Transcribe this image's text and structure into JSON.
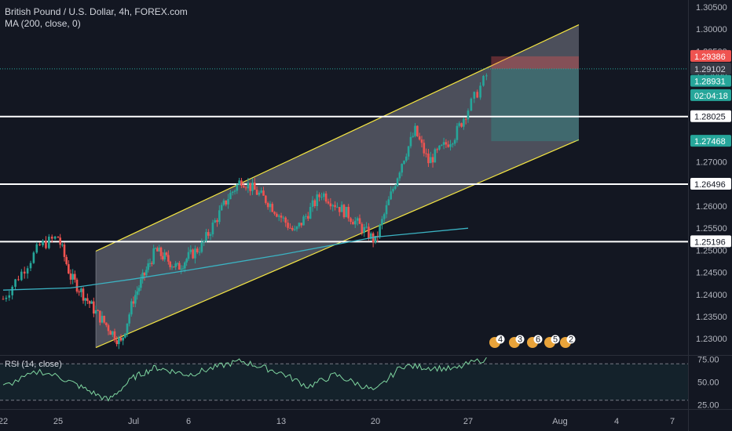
{
  "header": {
    "symbol_line": "British Pound / U.S. Dollar, 4h, FOREX.com",
    "indicator_line": "MA (200, close, 0)"
  },
  "rsi": {
    "label": "RSI (14, close)",
    "levels": [
      "75.00",
      "50.00",
      "25.00"
    ]
  },
  "colors": {
    "background": "#131722",
    "up": "#26a69a",
    "down": "#ef5350",
    "channel": "#f5e642",
    "ma": "#3bb3c3",
    "rsi": "#7fd6a0"
  },
  "price_axis": {
    "ticks": [
      "1.30500",
      "1.30000",
      "1.29500",
      "1.29000",
      "1.28500",
      "1.28000",
      "1.27500",
      "1.27000",
      "1.26500",
      "1.26000",
      "1.25500",
      "1.25000",
      "1.24500",
      "1.24000",
      "1.23500",
      "1.23000"
    ]
  },
  "price_tags": [
    {
      "label": "1.29386",
      "color": "#ef5350",
      "text_color": "#ffffff"
    },
    {
      "label": "1.29102",
      "color": "#363a45",
      "text_color": "#d1d4dc"
    },
    {
      "label": "1.28931",
      "color": "#26a69a",
      "text_color": "#ffffff"
    },
    {
      "label": "02:04:18",
      "color": "#26a69a",
      "text_color": "#ffffff"
    },
    {
      "label": "1.28025",
      "color": "#ffffff",
      "text_color": "#131722"
    },
    {
      "label": "1.27468",
      "color": "#26a69a",
      "text_color": "#ffffff"
    },
    {
      "label": "1.26496",
      "color": "#ffffff",
      "text_color": "#131722"
    },
    {
      "label": "1.25196",
      "color": "#ffffff",
      "text_color": "#131722"
    }
  ],
  "time_axis": {
    "ticks": [
      "22",
      "25",
      "Jul",
      "6",
      "13",
      "20",
      "27",
      "Aug",
      "4",
      "7"
    ]
  },
  "event_badges": [
    "4",
    "3",
    "6",
    "5",
    "2"
  ],
  "chart_data": {
    "type": "candlestick",
    "title": "British Pound / U.S. Dollar, 4h, FOREX.com",
    "timeframe": "4h",
    "y_range": [
      1.2265,
      1.3066
    ],
    "last_price": 1.28931,
    "horizontal_levels": [
      1.28025,
      1.26496,
      1.25196
    ],
    "channel": {
      "start_date": "Jun 28",
      "end_date": "Aug 2",
      "upper": [
        1.2498,
        1.301
      ],
      "lower": [
        1.228,
        1.275
      ]
    },
    "position": {
      "stop": 1.29386,
      "entry": 1.29102,
      "target": 1.27468
    },
    "ma_200": [
      {
        "x": "Jun 22",
        "y": 1.241
      },
      {
        "x": "Jun 26",
        "y": 1.2415
      },
      {
        "x": "Jul 1",
        "y": 1.2435
      },
      {
        "x": "Jul 6",
        "y": 1.2455
      },
      {
        "x": "Jul 13",
        "y": 1.249
      },
      {
        "x": "Jul 20",
        "y": 1.253
      },
      {
        "x": "Jul 27",
        "y": 1.255
      }
    ],
    "close_path": [
      {
        "x": "Jun 22",
        "y": 1.239
      },
      {
        "x": "Jun 24",
        "y": 1.251
      },
      {
        "x": "Jun 25",
        "y": 1.253
      },
      {
        "x": "Jun 26",
        "y": 1.244
      },
      {
        "x": "Jun 28",
        "y": 1.236
      },
      {
        "x": "Jun 30",
        "y": 1.229
      },
      {
        "x": "Jul 1",
        "y": 1.239
      },
      {
        "x": "Jul 3",
        "y": 1.25
      },
      {
        "x": "Jul 5",
        "y": 1.246
      },
      {
        "x": "Jul 7",
        "y": 1.251
      },
      {
        "x": "Jul 9",
        "y": 1.262
      },
      {
        "x": "Jul 10",
        "y": 1.266
      },
      {
        "x": "Jul 12",
        "y": 1.261
      },
      {
        "x": "Jul 14",
        "y": 1.254
      },
      {
        "x": "Jul 16",
        "y": 1.263
      },
      {
        "x": "Jul 18",
        "y": 1.258
      },
      {
        "x": "Jul 20",
        "y": 1.252
      },
      {
        "x": "Jul 22",
        "y": 1.27
      },
      {
        "x": "Jul 23",
        "y": 1.277
      },
      {
        "x": "Jul 24",
        "y": 1.27
      },
      {
        "x": "Jul 26",
        "y": 1.276
      },
      {
        "x": "Jul 27",
        "y": 1.282
      },
      {
        "x": "Jul 28",
        "y": 1.2895
      }
    ],
    "rsi_path": [
      {
        "x": "Jun 22",
        "y": 45
      },
      {
        "x": "Jun 24",
        "y": 62
      },
      {
        "x": "Jun 26",
        "y": 50
      },
      {
        "x": "Jun 29",
        "y": 30
      },
      {
        "x": "Jul 1",
        "y": 55
      },
      {
        "x": "Jul 3",
        "y": 66
      },
      {
        "x": "Jul 6",
        "y": 58
      },
      {
        "x": "Jul 9",
        "y": 70
      },
      {
        "x": "Jul 10",
        "y": 73
      },
      {
        "x": "Jul 13",
        "y": 60
      },
      {
        "x": "Jul 15",
        "y": 45
      },
      {
        "x": "Jul 17",
        "y": 58
      },
      {
        "x": "Jul 20",
        "y": 40
      },
      {
        "x": "Jul 22",
        "y": 68
      },
      {
        "x": "Jul 24",
        "y": 66
      },
      {
        "x": "Jul 26",
        "y": 64
      },
      {
        "x": "Jul 28",
        "y": 76
      }
    ],
    "rsi_range": [
      22,
      78
    ],
    "rsi_levels": [
      70,
      50,
      30
    ]
  }
}
